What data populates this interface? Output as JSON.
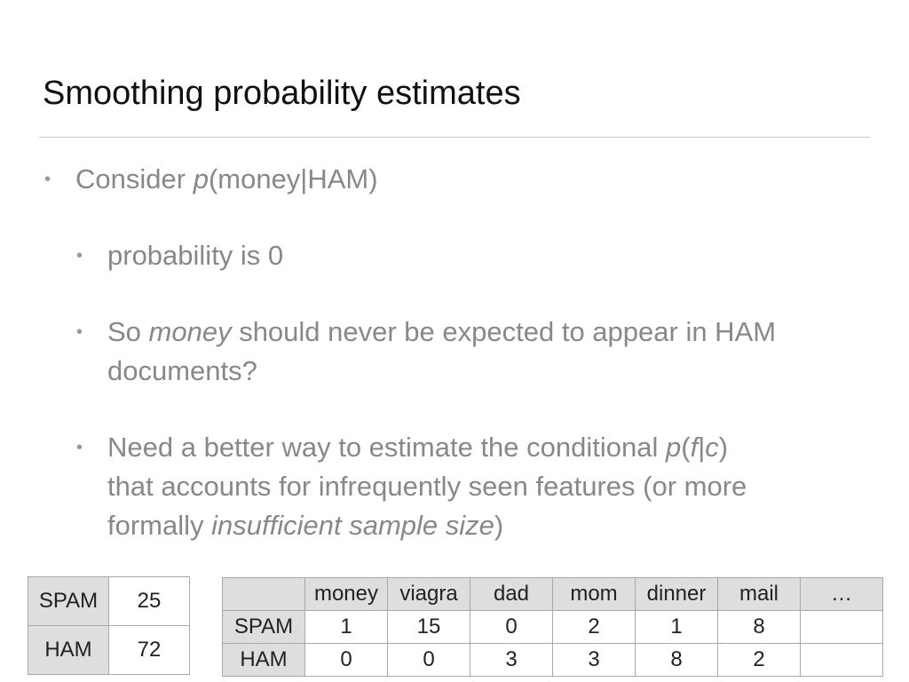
{
  "title": "Smoothing probability estimates",
  "bullets": {
    "b1": {
      "pre": "Consider ",
      "italic": "p",
      "post": "(money|HAM)"
    },
    "b2": {
      "text": "probability is 0"
    },
    "b3": {
      "pre": "So ",
      "italic": "money",
      "post": " should never be expected to appear in HAM",
      "line2": "documents?"
    },
    "b4": {
      "line1_pre": "Need a better way to estimate the conditional ",
      "line1_p": "p",
      "line1_open": "(",
      "line1_f": "f",
      "line1_bar": "|",
      "line1_c": "c",
      "line1_close": ")",
      "line2": "that accounts for infrequently seen features (or more",
      "line3_pre": "formally ",
      "line3_italic": "insufficient sample size",
      "line3_post": ")"
    }
  },
  "count_table": {
    "rows": [
      {
        "label": "SPAM",
        "value": "25"
      },
      {
        "label": "HAM",
        "value": "72"
      }
    ]
  },
  "freq_table": {
    "headers": [
      "",
      "money",
      "viagra",
      "dad",
      "mom",
      "dinner",
      "mail",
      "…"
    ],
    "rows": [
      {
        "label": "SPAM",
        "values": [
          "1",
          "15",
          "0",
          "2",
          "1",
          "8",
          ""
        ]
      },
      {
        "label": "HAM",
        "values": [
          "0",
          "0",
          "3",
          "3",
          "8",
          "2",
          ""
        ]
      }
    ]
  }
}
